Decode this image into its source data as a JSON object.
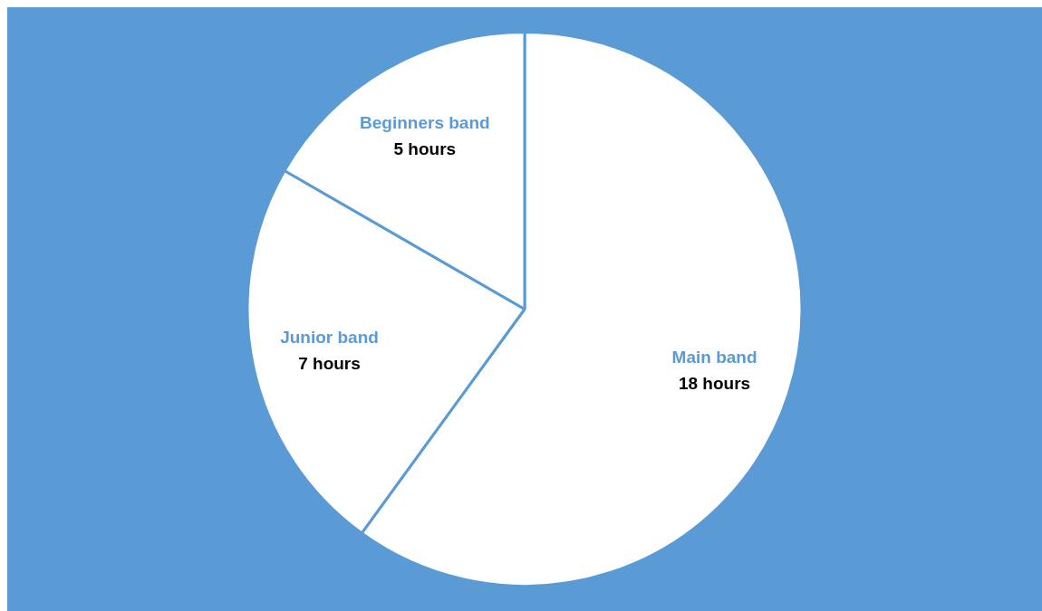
{
  "chart_data": {
    "type": "pie",
    "categories": [
      "Main band",
      "Junior band",
      "Beginners band"
    ],
    "values": [
      18,
      7,
      5
    ],
    "colors": [
      "#ffffff",
      "#ffffff",
      "#ffffff"
    ],
    "value_labels": [
      "18 hours",
      "7 hours",
      "5 hours"
    ],
    "legend": false
  }
}
